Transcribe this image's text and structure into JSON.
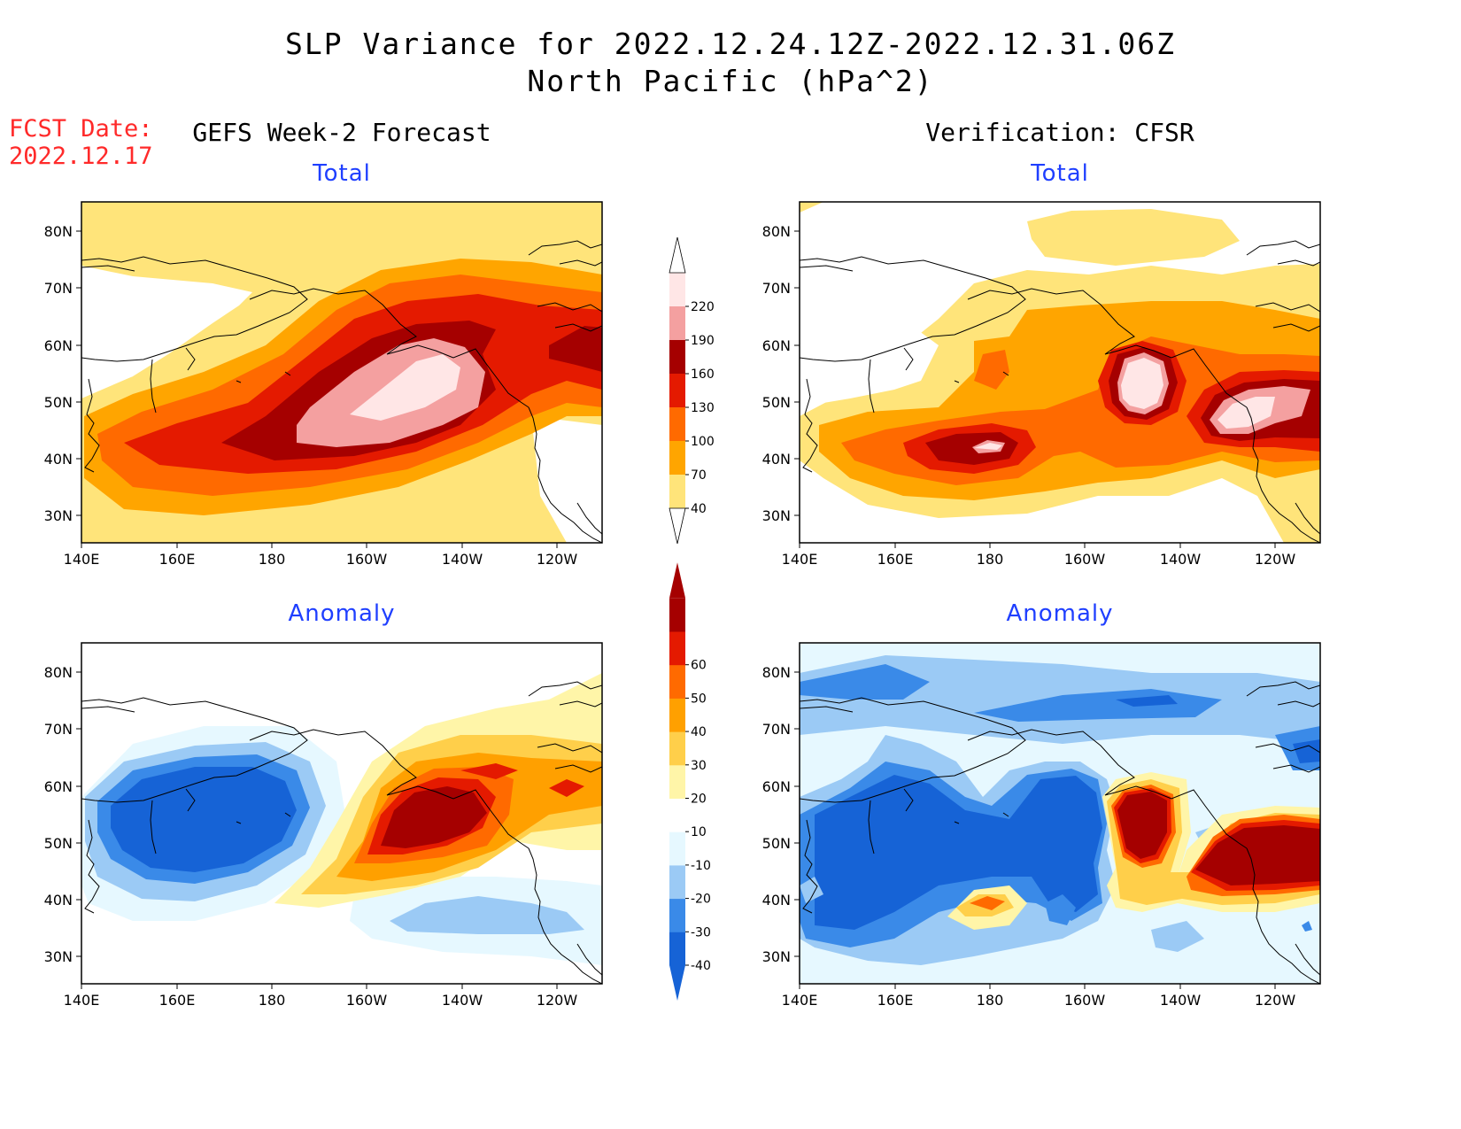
{
  "header": {
    "title_line1": "SLP Variance for 2022.12.24.12Z-2022.12.31.06Z",
    "title_line2": "North Pacific (hPa^2)"
  },
  "fcst": {
    "label": "FCST Date:",
    "date": "2022.12.17"
  },
  "columns": {
    "left": "GEFS Week-2 Forecast",
    "right": "Verification: CFSR"
  },
  "panel_titles": {
    "total": "Total",
    "anomaly": "Anomaly"
  },
  "axes": {
    "lat_ticks": [
      "80N",
      "70N",
      "60N",
      "50N",
      "40N",
      "30N"
    ],
    "lon_ticks": [
      "140E",
      "160E",
      "180",
      "160W",
      "140W",
      "120W"
    ]
  },
  "legends": {
    "total": {
      "levels": [
        "40",
        "70",
        "100",
        "130",
        "160",
        "190",
        "220"
      ],
      "colors": [
        "#ffe47a",
        "#ffa500",
        "#ff6a00",
        "#e41a00",
        "#a50000",
        "#f4a0a0",
        "#ffe6e6"
      ]
    },
    "anomaly": {
      "levels": [
        "-40",
        "-30",
        "-20",
        "-10",
        "10",
        "20",
        "30",
        "40",
        "50",
        "60"
      ],
      "colors": [
        "#1663d6",
        "#3a8ae8",
        "#9bcaf5",
        "#e6f8ff",
        "#ffffff",
        "#fff5a8",
        "#ffcf4a",
        "#ffa000",
        "#ff6a00",
        "#e41a00",
        "#a50000"
      ]
    }
  }
}
